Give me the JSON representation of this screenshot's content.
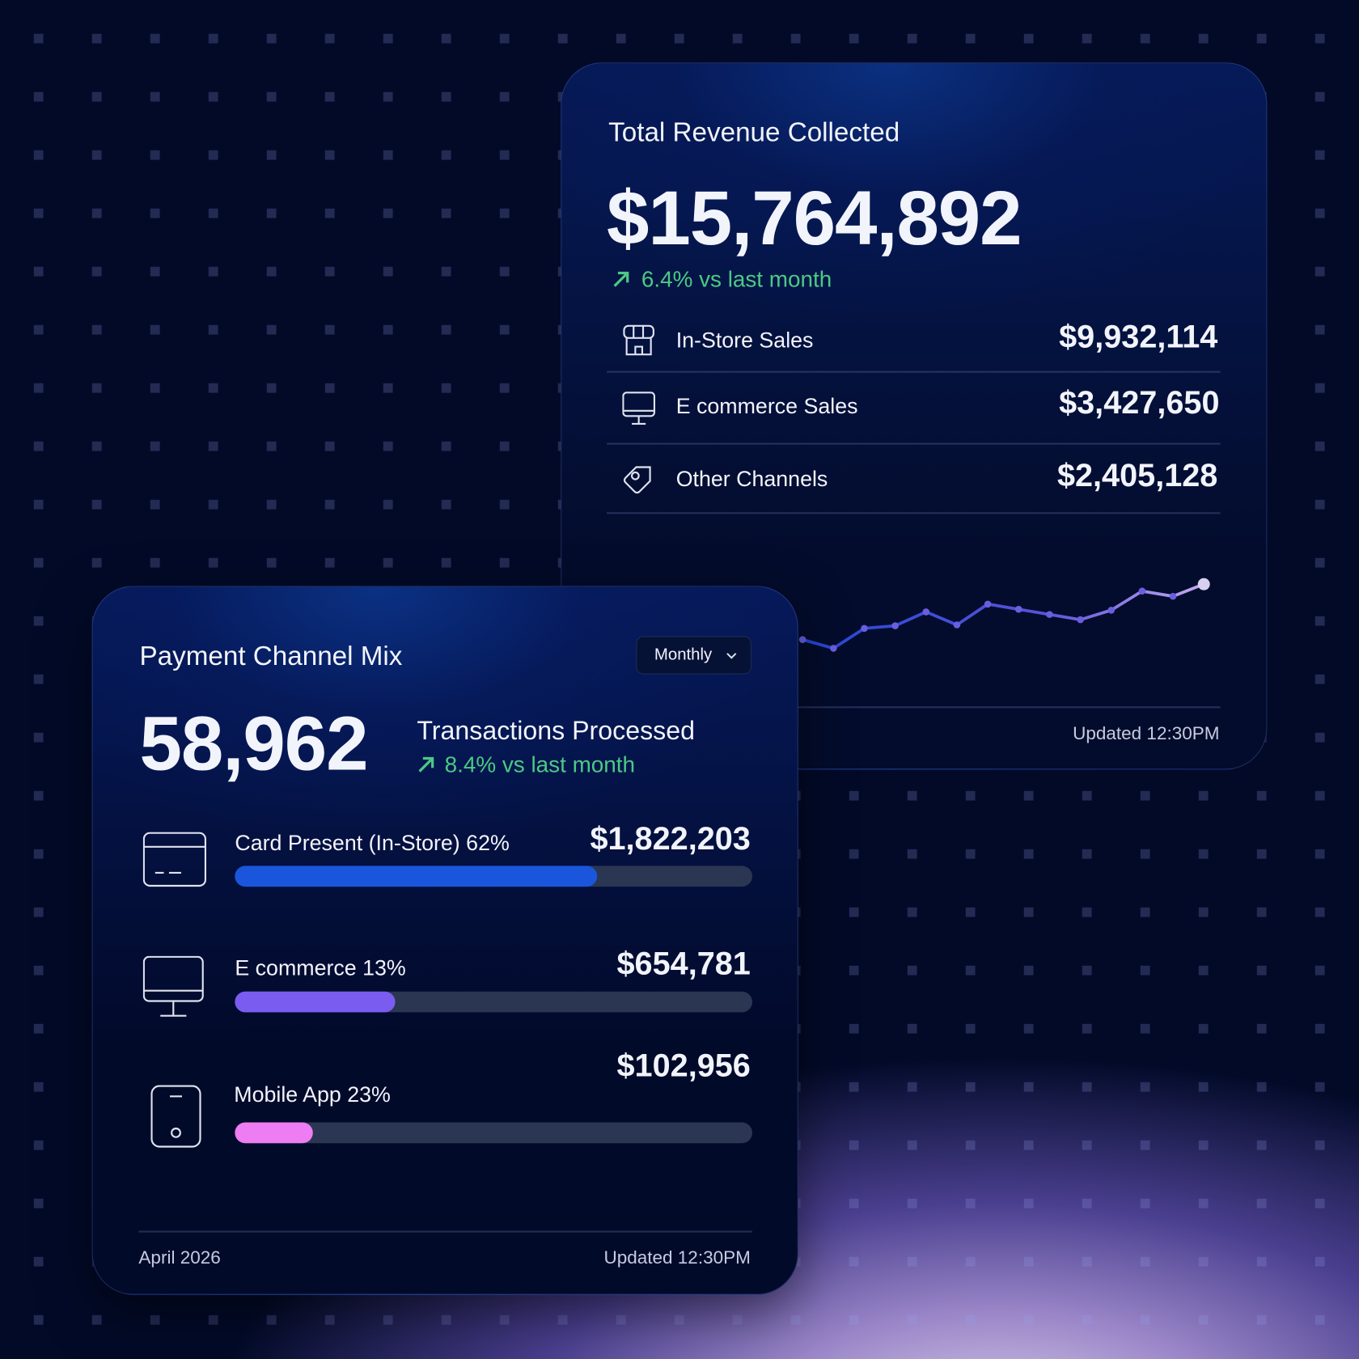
{
  "revenue_card": {
    "title": "Total Revenue Collected",
    "amount": "$15,764,892",
    "change": "6.4% vs last month",
    "rows": [
      {
        "label": "In-Store Sales",
        "value": "$9,932,114"
      },
      {
        "label": "E commerce Sales",
        "value": "$3,427,650"
      },
      {
        "label": "Other Channels",
        "value": "$2,405,128"
      }
    ],
    "trend": [
      23,
      13,
      36,
      39,
      55,
      40,
      64,
      58,
      52,
      46,
      57,
      79,
      73,
      87
    ],
    "updated": "Updated 12:30PM"
  },
  "payment_card": {
    "title": "Payment Channel Mix",
    "period": "Monthly",
    "count": "58,962",
    "count_label": "Transactions Processed",
    "change": "8.4% vs last month",
    "channels": [
      {
        "label": "Card Present (In-Store) 62%",
        "amount": "$1,822,203",
        "progress": 70,
        "color": "#1a56db"
      },
      {
        "label": "E commerce 13%",
        "amount": "$654,781",
        "progress": 31,
        "color": "#7b5cf0"
      },
      {
        "label": "Mobile App 23%",
        "amount": "$102,956",
        "progress": 15,
        "color": "#ee7cf2"
      }
    ],
    "date": "April 2026",
    "updated": "Updated 12:30PM"
  }
}
